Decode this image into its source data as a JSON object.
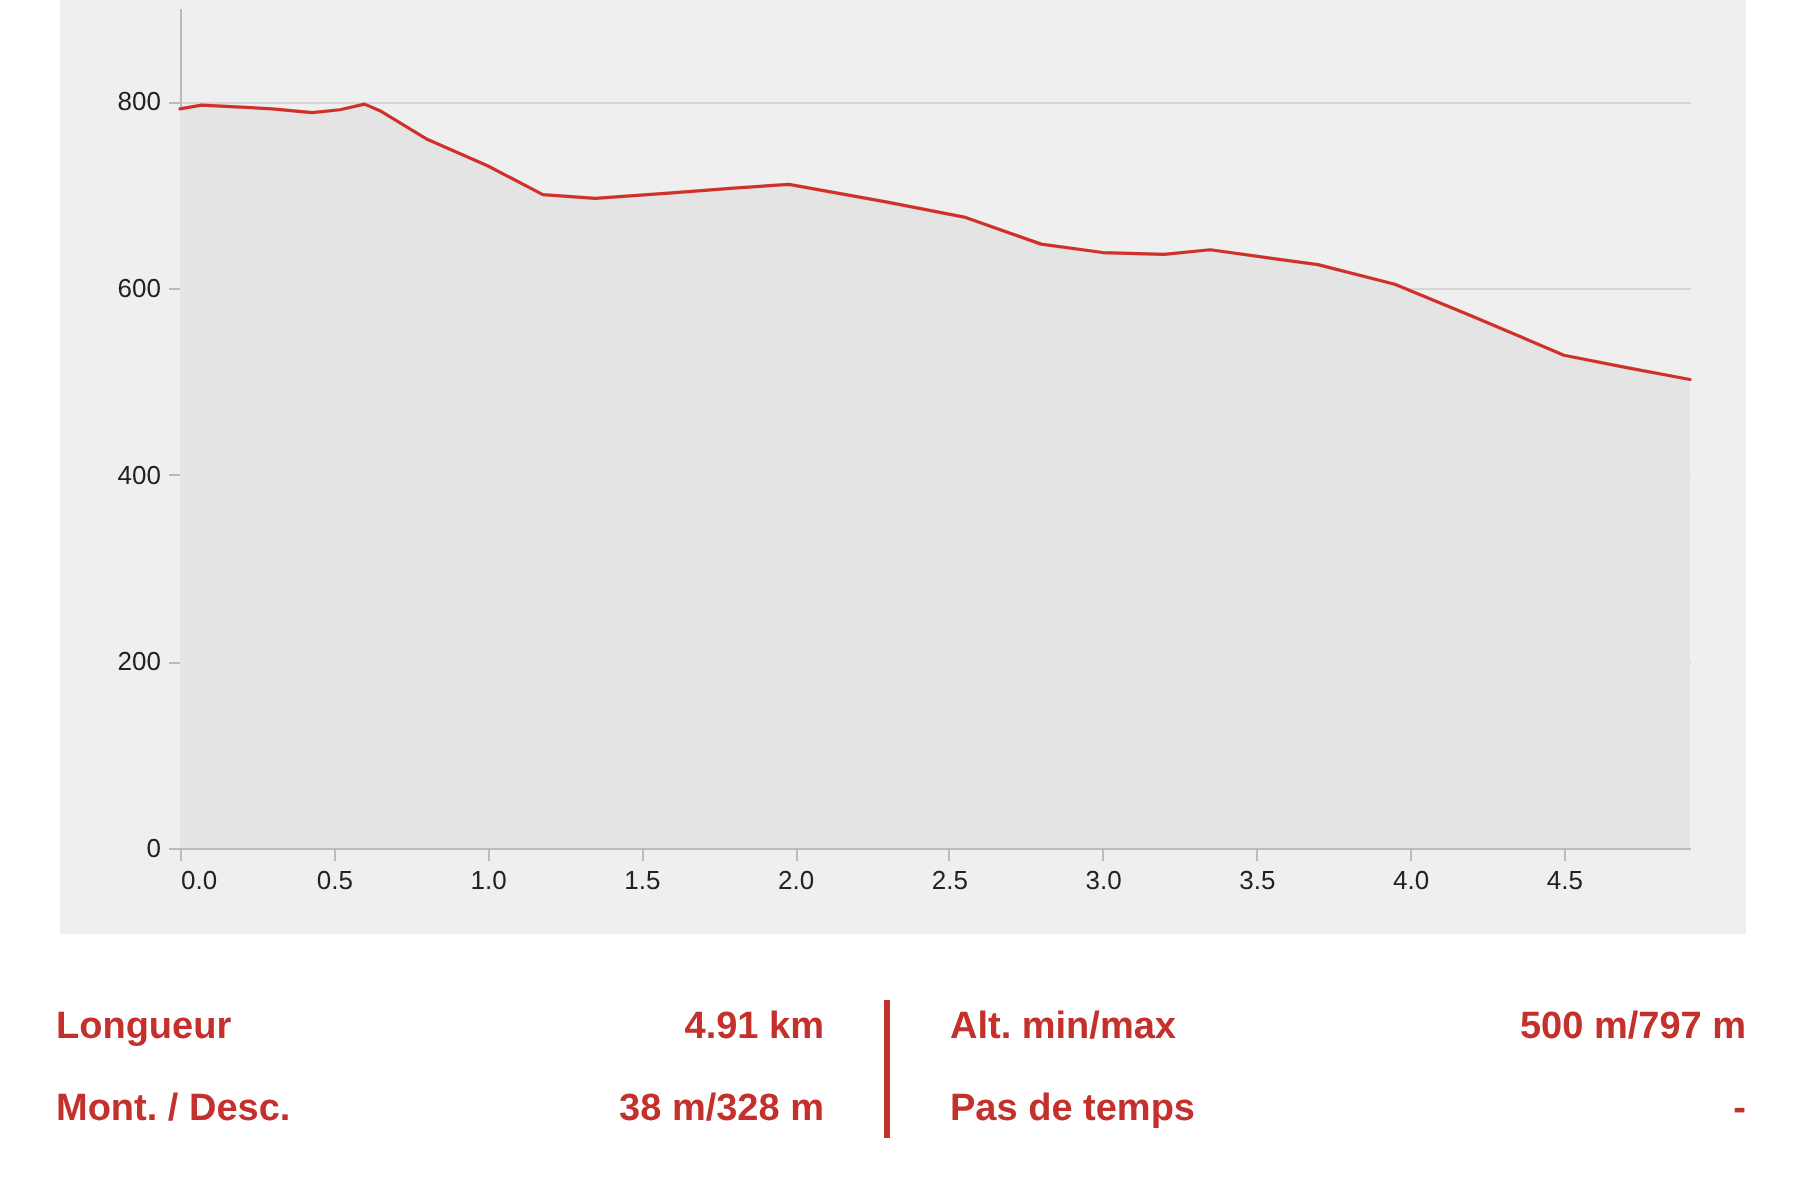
{
  "chart_data": {
    "type": "area",
    "x": [
      0,
      0.07,
      0.3,
      0.43,
      0.52,
      0.6,
      0.65,
      0.8,
      1.0,
      1.18,
      1.35,
      1.6,
      1.8,
      1.98,
      2.3,
      2.55,
      2.8,
      3.0,
      3.2,
      3.35,
      3.7,
      3.95,
      4.2,
      4.5,
      4.7,
      4.91
    ],
    "series": [
      {
        "color": "#d0302a",
        "values": [
          792,
          796,
          792,
          788,
          791,
          797,
          790,
          760,
          731,
          700,
          696,
          702,
          707,
          711,
          692,
          676,
          647,
          638,
          636,
          641,
          625,
          604,
          570,
          528,
          515,
          502
        ]
      }
    ],
    "xlim": [
      0,
      4.91
    ],
    "ylim": [
      0,
      900
    ],
    "xticks": [
      {
        "value": 0,
        "label": "0.0"
      },
      {
        "value": 0.5,
        "label": "0.5"
      },
      {
        "value": 1,
        "label": "1.0"
      },
      {
        "value": 1.5,
        "label": "1.5"
      },
      {
        "value": 2,
        "label": "2.0"
      },
      {
        "value": 2.5,
        "label": "2.5"
      },
      {
        "value": 3,
        "label": "3.0"
      },
      {
        "value": 3.5,
        "label": "3.5"
      },
      {
        "value": 4,
        "label": "4.0"
      },
      {
        "value": 4.5,
        "label": "4.5"
      }
    ],
    "yticks": [
      0,
      200,
      400,
      600,
      800
    ],
    "grid": "y",
    "annotations": [
      "Longueur",
      "4.91 km",
      "Alt. min/max",
      "500 m/797 m",
      "Mont. / Desc.",
      "38 m/328 m",
      "Pas de temps",
      "-"
    ]
  }
}
